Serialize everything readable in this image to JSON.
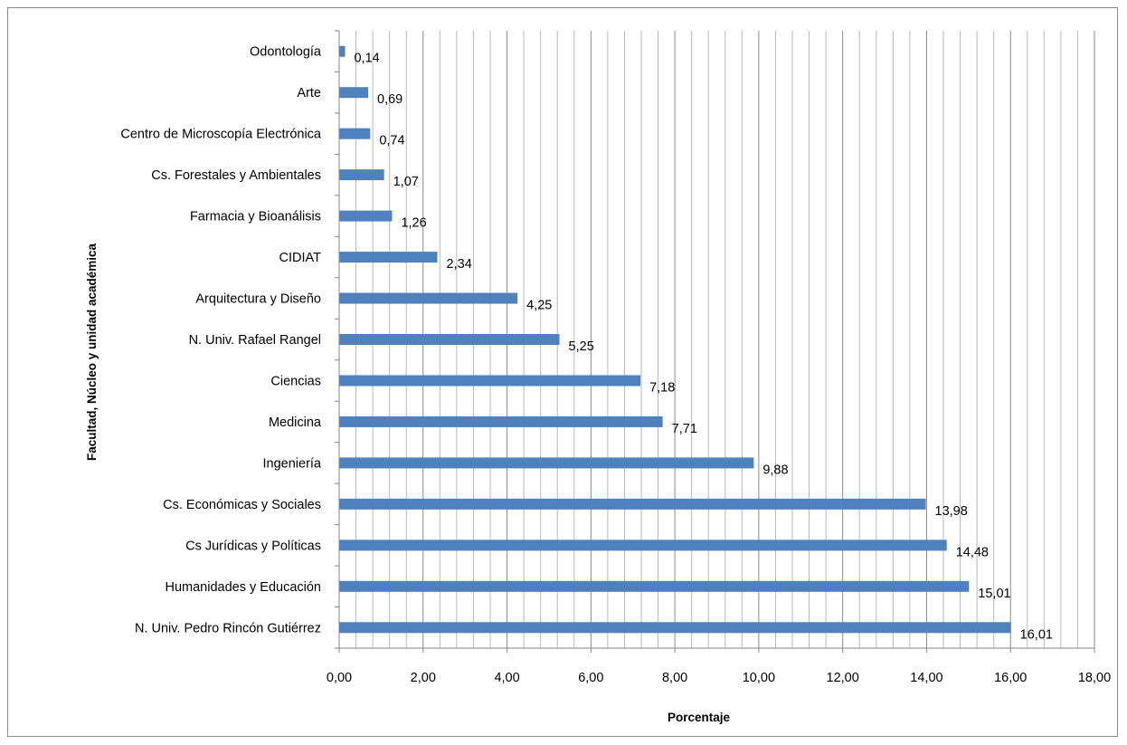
{
  "chart_data": {
    "type": "bar",
    "orientation": "horizontal",
    "xlabel": "Porcentaje",
    "ylabel": "Facultad, Núcleo y unidad académica",
    "xlim": [
      0,
      18
    ],
    "x_major_step": 2,
    "x_minor_step": 0.4,
    "grid": true,
    "legend": "none",
    "bar_color": "#4f81bd",
    "tick_labels": [
      "0,00",
      "2,00",
      "4,00",
      "6,00",
      "8,00",
      "10,00",
      "12,00",
      "14,00",
      "16,00",
      "18,00"
    ],
    "categories": [
      "Odontología",
      "Arte",
      "Centro de Microscopía Electrónica",
      "Cs. Forestales y Ambientales",
      "Farmacia y Bioanálisis",
      "CIDIAT",
      "Arquitectura y Diseño",
      "N. Univ. Rafael Rangel",
      "Ciencias",
      "Medicina",
      "Ingeniería",
      "Cs. Económicas y Sociales",
      "Cs Jurídicas y Políticas",
      "Humanidades y Educación",
      "N. Univ. Pedro Rincón Gutiérrez"
    ],
    "values": [
      0.14,
      0.69,
      0.74,
      1.07,
      1.26,
      2.34,
      4.25,
      5.25,
      7.18,
      7.71,
      9.88,
      13.98,
      14.48,
      15.01,
      16.01
    ],
    "value_labels": [
      "0,14",
      "0,69",
      "0,74",
      "1,07",
      "1,26",
      "2,34",
      "4,25",
      "5,25",
      "7,18",
      "7,71",
      "9,88",
      "13,98",
      "14,48",
      "15,01",
      "16,01"
    ]
  }
}
